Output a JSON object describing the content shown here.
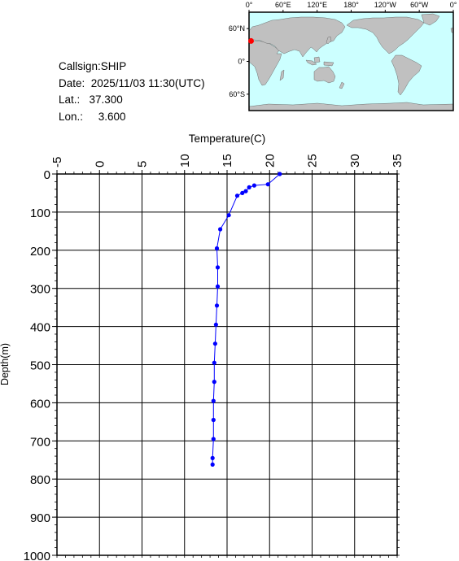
{
  "info": {
    "callsign": "Callsign:SHIP",
    "date": "Date:  2025/11/03 11:30(UTC)",
    "lat": "Lat.:   37.300",
    "lon": "Lon.:     3.600"
  },
  "map": {
    "lon_labels": [
      "0°",
      "60°E",
      "120°E",
      "180°",
      "120°W",
      "60°W",
      "0°"
    ],
    "lat_labels": [
      "60°N",
      "0°",
      "60°S"
    ],
    "ocean_color": "#ccffff",
    "land_color": "#c0c0c0",
    "marker": {
      "lat": 37.3,
      "lon": 3.6,
      "color": "#ff0000"
    }
  },
  "chart_data": {
    "type": "line",
    "xlabel": "Temperature(C)",
    "ylabel": "Depth(m)",
    "xlim": [
      -5,
      35
    ],
    "ylim": [
      0,
      1000
    ],
    "x_ticks": [
      "-5",
      "0",
      "5",
      "10",
      "15",
      "20",
      "25",
      "30",
      "35"
    ],
    "y_ticks": [
      "0",
      "100",
      "200",
      "300",
      "400",
      "500",
      "600",
      "700",
      "800",
      "900",
      "1000"
    ],
    "grid": true,
    "line_color": "#0000ff",
    "points": [
      {
        "temp": 21.2,
        "depth": 0
      },
      {
        "temp": 19.8,
        "depth": 27
      },
      {
        "temp": 18.2,
        "depth": 30
      },
      {
        "temp": 17.6,
        "depth": 35
      },
      {
        "temp": 17.2,
        "depth": 45
      },
      {
        "temp": 16.8,
        "depth": 50
      },
      {
        "temp": 16.2,
        "depth": 57
      },
      {
        "temp": 15.2,
        "depth": 108
      },
      {
        "temp": 14.2,
        "depth": 145
      },
      {
        "temp": 13.8,
        "depth": 195
      },
      {
        "temp": 13.9,
        "depth": 245
      },
      {
        "temp": 13.9,
        "depth": 295
      },
      {
        "temp": 13.8,
        "depth": 345
      },
      {
        "temp": 13.7,
        "depth": 395
      },
      {
        "temp": 13.6,
        "depth": 445
      },
      {
        "temp": 13.5,
        "depth": 495
      },
      {
        "temp": 13.5,
        "depth": 545
      },
      {
        "temp": 13.4,
        "depth": 595
      },
      {
        "temp": 13.4,
        "depth": 645
      },
      {
        "temp": 13.4,
        "depth": 695
      },
      {
        "temp": 13.3,
        "depth": 745
      },
      {
        "temp": 13.3,
        "depth": 762
      }
    ]
  }
}
